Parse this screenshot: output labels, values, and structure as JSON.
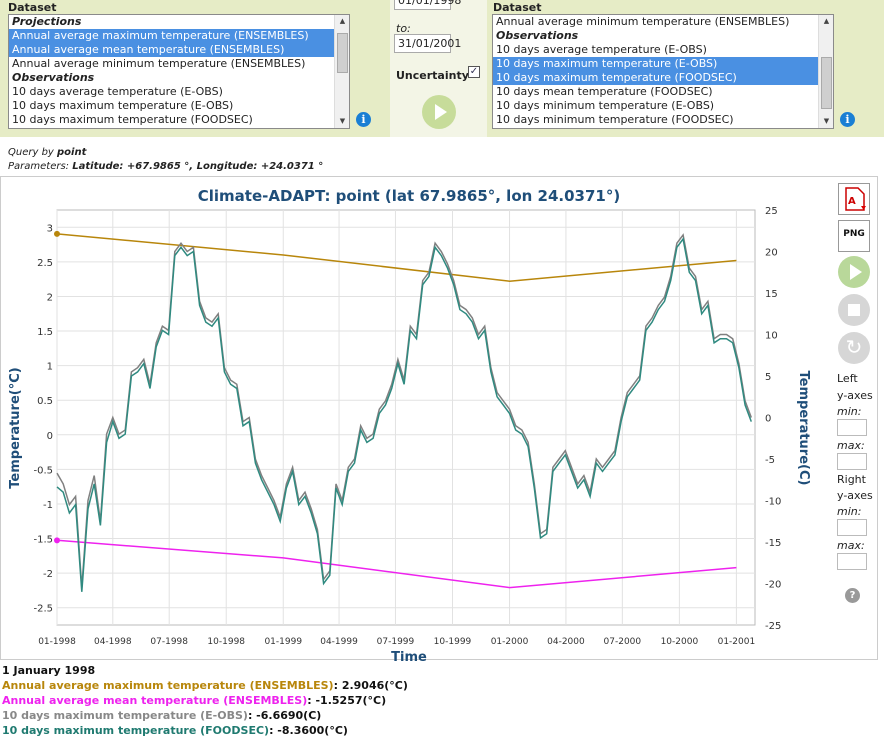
{
  "left_panel": {
    "title": "Dataset",
    "items": [
      {
        "label": "Projections",
        "group": true,
        "selected": false
      },
      {
        "label": "Annual average maximum temperature (ENSEMBLES)",
        "group": false,
        "selected": true
      },
      {
        "label": "Annual average mean temperature (ENSEMBLES)",
        "group": false,
        "selected": true
      },
      {
        "label": "Annual average minimum temperature (ENSEMBLES)",
        "group": false,
        "selected": false
      },
      {
        "label": "Observations",
        "group": true,
        "selected": false
      },
      {
        "label": "10 days average temperature (E-OBS)",
        "group": false,
        "selected": false
      },
      {
        "label": "10 days maximum temperature (E-OBS)",
        "group": false,
        "selected": false
      },
      {
        "label": "10 days maximum temperature (FOODSEC)",
        "group": false,
        "selected": false
      }
    ]
  },
  "dates": {
    "from_value": "01/01/1998",
    "to_label": "to:",
    "to_value": "31/01/2001"
  },
  "uncertainty": {
    "label": "Uncertainty",
    "checked": true
  },
  "right_panel": {
    "title": "Dataset",
    "items": [
      {
        "label": "Annual average minimum temperature (ENSEMBLES)",
        "group": false,
        "selected": false
      },
      {
        "label": "Observations",
        "group": true,
        "selected": false
      },
      {
        "label": "10 days average temperature (E-OBS)",
        "group": false,
        "selected": false
      },
      {
        "label": "10 days maximum temperature (E-OBS)",
        "group": false,
        "selected": true
      },
      {
        "label": "10 days maximum temperature (FOODSEC)",
        "group": false,
        "selected": true
      },
      {
        "label": "10 days mean temperature (FOODSEC)",
        "group": false,
        "selected": false
      },
      {
        "label": "10 days minimum temperature (E-OBS)",
        "group": false,
        "selected": false
      },
      {
        "label": "10 days minimum temperature (FOODSEC)",
        "group": false,
        "selected": false
      }
    ]
  },
  "query": {
    "line1_prefix": "Query by ",
    "line1_value": "point",
    "line2_prefix": "Parameters: ",
    "line2_value": "Latitude: +67.9865 °, Longitude: +24.0371 °"
  },
  "tools": {
    "png_label": "PNG"
  },
  "side": {
    "left_axes": "Left",
    "y_axes": "y-axes",
    "min": "min:",
    "max": "max:",
    "right_axes": "Right",
    "y_axes2": "y-axes",
    "min2": "min:",
    "max2": "max:"
  },
  "chart_data": {
    "type": "line",
    "title": "Climate-ADAPT: point (lat 67.9865°, lon 24.0371°)",
    "xlabel": "Time",
    "ylabel_left": "Temperature(°C)",
    "ylabel_right": "Temperature(C)",
    "x_ticks": [
      "01-1998",
      "04-1998",
      "07-1998",
      "10-1998",
      "01-1999",
      "04-1999",
      "07-1999",
      "10-1999",
      "01-2000",
      "04-2000",
      "07-2000",
      "10-2000",
      "01-2001"
    ],
    "y_left_ticks": [
      "3",
      "2.5",
      "2",
      "1.5",
      "1",
      "0.5",
      "0",
      "-0.5",
      "-1",
      "-1.5",
      "-2",
      "-2.5"
    ],
    "y_right_ticks": [
      "25",
      "20",
      "15",
      "10",
      "5",
      "0",
      "-5",
      "-10",
      "-15",
      "-20",
      "-25"
    ],
    "y_left_range": [
      -2.75,
      3.25
    ],
    "y_right_range": [
      -25,
      25
    ],
    "grid": true,
    "series": [
      {
        "name": "Annual average maximum temperature (ENSEMBLES)",
        "axis": "left",
        "color": "#b8860b",
        "x": [
          "1998-01-01",
          "1999-01-01",
          "2000-01-01",
          "2001-01-01"
        ],
        "values": [
          2.9046,
          2.6,
          2.22,
          2.52
        ]
      },
      {
        "name": "Annual average mean temperature (ENSEMBLES)",
        "axis": "left",
        "color": "#ee22ee",
        "x": [
          "1998-01-01",
          "1999-01-01",
          "2000-01-01",
          "2001-01-01"
        ],
        "values": [
          -1.5257,
          -1.78,
          -2.21,
          -1.92
        ]
      },
      {
        "name": "10 days maximum temperature (E-OBS)",
        "axis": "right",
        "color": "#808080",
        "x_start": "1998-01-01",
        "step_days": 10,
        "values": [
          -6.7,
          -8,
          -10.5,
          -9.5,
          -20.5,
          -10,
          -7,
          -12.5,
          -2,
          0,
          -2,
          -1.5,
          5.5,
          6,
          7,
          4,
          9,
          11,
          10.5,
          20,
          21,
          20,
          20.5,
          14,
          12,
          11.5,
          12.5,
          6,
          4.5,
          4,
          -0.5,
          0,
          -5,
          -7,
          -8.5,
          -10,
          -12,
          -8,
          -6,
          -10,
          -9,
          -11,
          -13.5,
          -19.5,
          -18.5,
          -8,
          -10,
          -6,
          -5,
          -1,
          -2.5,
          -2,
          1,
          2,
          4,
          7,
          4.5,
          11,
          10,
          16.5,
          17.5,
          21,
          20,
          18.5,
          16.5,
          13.5,
          13,
          12,
          10,
          11,
          6,
          3,
          2,
          1,
          -1,
          -1.5,
          -3,
          -8,
          -14,
          -13.5,
          -6,
          -5,
          -4,
          -6,
          -8,
          -7,
          -9,
          -5,
          -6,
          -5,
          -4,
          0,
          3,
          4,
          5,
          11,
          12,
          13.5,
          14.5,
          17,
          21,
          22,
          18,
          17,
          13,
          14,
          9.5,
          10,
          10,
          9.5,
          6.5,
          2,
          0,
          -1,
          -3,
          -5,
          -8,
          -12,
          -3,
          -4.5
        ],
        "note_mode": "dashed"
      },
      {
        "name": "10 days maximum temperature (FOODSEC)",
        "axis": "right",
        "color": "#2f8a80",
        "x_start": "1998-01-01",
        "step_days": 10,
        "values": [
          -8.36,
          -9,
          -11.5,
          -10.5,
          -21,
          -11,
          -8,
          -13,
          -3,
          -0.5,
          -2.5,
          -2,
          5,
          5.5,
          6.5,
          3.5,
          8.5,
          10.5,
          10,
          19.5,
          20.5,
          19.5,
          20,
          13.5,
          11.5,
          11,
          12,
          5.5,
          4,
          3.5,
          -1,
          -0.5,
          -5.5,
          -7.5,
          -9,
          -10.5,
          -12.5,
          -8.5,
          -6.5,
          -10.5,
          -9.5,
          -11.5,
          -14,
          -20,
          -19,
          -8.5,
          -10.5,
          -6.5,
          -5.5,
          -1.5,
          -3,
          -2.5,
          0.5,
          1.5,
          3.5,
          6.5,
          4,
          10.5,
          9.5,
          16,
          17,
          20.5,
          19.5,
          18,
          16,
          13,
          12.5,
          11.5,
          9.5,
          10.5,
          5.5,
          2.5,
          1.5,
          0.5,
          -1.5,
          -2,
          -3.5,
          -8.5,
          -14.5,
          -14,
          -6.5,
          -5.5,
          -4.5,
          -6.5,
          -8.5,
          -7.5,
          -9.5,
          -5.5,
          -6.5,
          -5.5,
          -4.5,
          -0.5,
          2.5,
          3.5,
          4.5,
          10.5,
          11.5,
          13,
          14,
          16.5,
          20.5,
          21.5,
          17.5,
          16.5,
          12.5,
          13.5,
          9,
          9.5,
          9.5,
          9,
          6,
          1.5,
          -0.5,
          -1.5,
          -3.5,
          -5.5,
          -8.5,
          -13,
          -3.5,
          -5
        ]
      }
    ]
  },
  "readout": {
    "date": "1 January 1998",
    "lines": [
      {
        "label": "Annual average maximum temperature (ENSEMBLES)",
        "value": ": 2.9046(°C)",
        "color": "#b8860b"
      },
      {
        "label": "Annual average mean temperature (ENSEMBLES)",
        "value": ": -1.5257(°C)",
        "color": "#ee22ee"
      },
      {
        "label": "10 days maximum temperature (E-OBS)",
        "value": ": -6.6690(C)",
        "color": "#888888"
      },
      {
        "label": "10 days maximum temperature (FOODSEC)",
        "value": ": -8.3600(°C)",
        "color": "#1f7a70"
      }
    ]
  }
}
